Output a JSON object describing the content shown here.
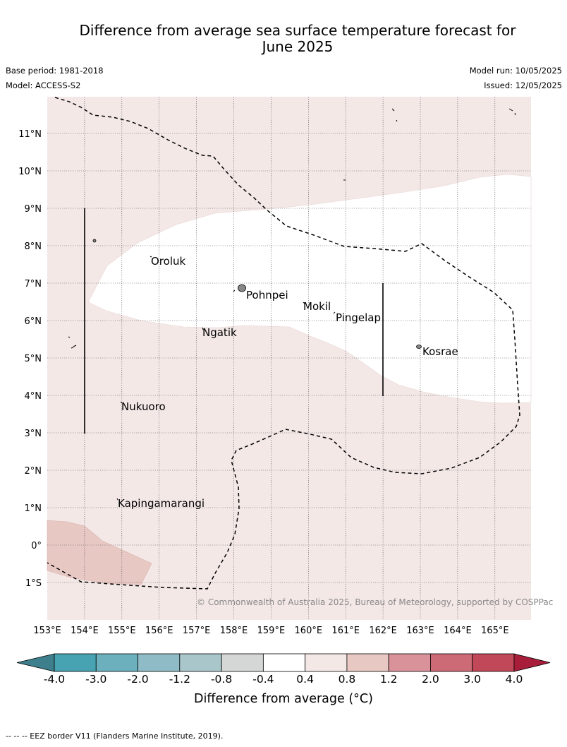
{
  "title_line1": "Difference from average sea surface temperature forecast for",
  "title_line2": "June 2025",
  "meta": {
    "base_period": "Base period: 1981-2018",
    "model": "Model: ACCESS-S2",
    "model_run": "Model run: 10/05/2025",
    "issued": "Issued: 12/05/2025"
  },
  "map": {
    "lat_labels": [
      "11°N",
      "10°N",
      "9°N",
      "8°N",
      "7°N",
      "6°N",
      "5°N",
      "4°N",
      "3°N",
      "2°N",
      "1°N",
      "0°",
      "1°S"
    ],
    "lon_labels": [
      "153°E",
      "154°E",
      "155°E",
      "156°E",
      "157°E",
      "158°E",
      "159°E",
      "160°E",
      "161°E",
      "162°E",
      "163°E",
      "164°E",
      "165°E"
    ],
    "places": [
      {
        "name": "Oroluk"
      },
      {
        "name": "Pohnpei"
      },
      {
        "name": "Mokil"
      },
      {
        "name": "Pingelap"
      },
      {
        "name": "Ngatik"
      },
      {
        "name": "Kosrae"
      },
      {
        "name": "Nukuoro"
      },
      {
        "name": "Kapingamarangi"
      }
    ],
    "copyright": "© Commonwealth of Australia 2025, Bureau of Meteorology, supported by COSPPac",
    "colors": {
      "anomaly_0_4_to_0_8": "#f4e8e7",
      "anomaly_0_8_to_1_2": "#e8c8c3",
      "neutral": "#ffffff"
    }
  },
  "colorbar": {
    "ticks": [
      "-4.0",
      "-3.0",
      "-2.0",
      "-1.2",
      "-0.8",
      "-0.4",
      "0.4",
      "0.8",
      "1.2",
      "2.0",
      "3.0",
      "4.0"
    ],
    "colors": [
      "#3d7f8c",
      "#47a2b2",
      "#6cb0be",
      "#8fbbc6",
      "#a9c7cb",
      "#d4d7d6",
      "#ffffff",
      "#f4e8e7",
      "#e8c8c3",
      "#d9929a",
      "#cc6b76",
      "#c04858",
      "#a81e3a"
    ],
    "label": "Difference from average (°C)"
  },
  "footnote": "-- -- -- EEZ border V11 (Flanders Marine Institute, 2019)."
}
